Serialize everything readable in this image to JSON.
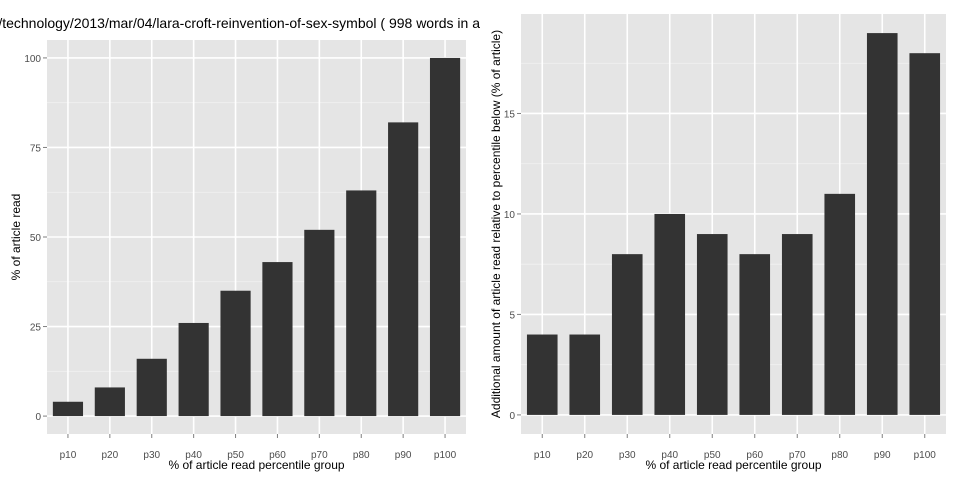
{
  "chart_data": [
    {
      "type": "bar",
      "title": "/technology/2013/mar/04/lara-croft-reinvention-of-sex-symbol ( 998 words in a",
      "categories": [
        "p10",
        "p20",
        "p30",
        "p40",
        "p50",
        "p60",
        "p70",
        "p80",
        "p90",
        "p100"
      ],
      "values": [
        4,
        8,
        16,
        26,
        35,
        43,
        52,
        63,
        82,
        100
      ],
      "xlabel": "% of article read percentile group",
      "ylabel": "% of article read",
      "yticks": [
        0,
        25,
        50,
        75,
        100
      ],
      "ylim": [
        -5,
        105
      ],
      "grid": true,
      "colors": {
        "panel": "#e5e5e5",
        "grid": "#ffffff",
        "bar": "#333333",
        "tick_text": "#4d4d4d",
        "label_text": "#000000"
      }
    },
    {
      "type": "bar",
      "title": "",
      "categories": [
        "p10",
        "p20",
        "p30",
        "p40",
        "p50",
        "p60",
        "p70",
        "p80",
        "p90",
        "p100"
      ],
      "values": [
        4,
        4,
        8,
        10,
        9,
        8,
        9,
        11,
        19,
        18
      ],
      "xlabel": "% of article read percentile group",
      "ylabel": "Additional amount of article read relative to percentile below (% of article)",
      "yticks": [
        0,
        5,
        10,
        15
      ],
      "ylim": [
        -0.95,
        19.95
      ],
      "grid": true,
      "colors": {
        "panel": "#e5e5e5",
        "grid": "#ffffff",
        "bar": "#333333",
        "tick_text": "#4d4d4d",
        "label_text": "#000000"
      }
    }
  ]
}
